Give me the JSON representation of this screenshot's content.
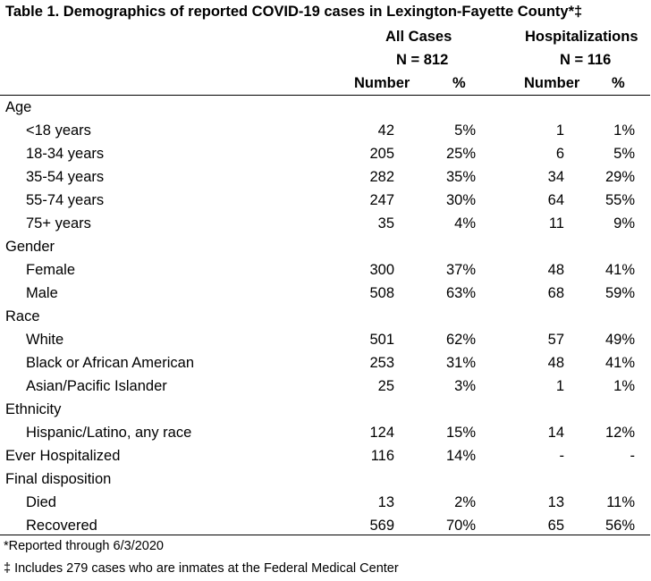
{
  "title": "Table 1. Demographics of reported COVID-19 cases in Lexington-Fayette County*‡",
  "headers": {
    "all_cases": "All Cases",
    "all_cases_n": "N = 812",
    "hospitalizations": "Hospitalizations",
    "hospitalizations_n": "N = 116",
    "number": "Number",
    "percent": "%",
    "number2": "Number",
    "percent2": "%"
  },
  "rows": [
    {
      "label": "Age",
      "type": "section"
    },
    {
      "label": "<18 years",
      "type": "child",
      "n1": "42",
      "p1": "5%",
      "n2": "1",
      "p2": "1%"
    },
    {
      "label": "18-34 years",
      "type": "child",
      "n1": "205",
      "p1": "25%",
      "n2": "6",
      "p2": "5%"
    },
    {
      "label": "35-54 years",
      "type": "child",
      "n1": "282",
      "p1": "35%",
      "n2": "34",
      "p2": "29%"
    },
    {
      "label": "55-74 years",
      "type": "child",
      "n1": "247",
      "p1": "30%",
      "n2": "64",
      "p2": "55%"
    },
    {
      "label": "75+ years",
      "type": "child",
      "n1": "35",
      "p1": "4%",
      "n2": "11",
      "p2": "9%"
    },
    {
      "label": "Gender",
      "type": "section"
    },
    {
      "label": "Female",
      "type": "child",
      "n1": "300",
      "p1": "37%",
      "n2": "48",
      "p2": "41%"
    },
    {
      "label": "Male",
      "type": "child",
      "n1": "508",
      "p1": "63%",
      "n2": "68",
      "p2": "59%"
    },
    {
      "label": "Race",
      "type": "section"
    },
    {
      "label": "White",
      "type": "child",
      "n1": "501",
      "p1": "62%",
      "n2": "57",
      "p2": "49%"
    },
    {
      "label": "Black or African American",
      "type": "child",
      "n1": "253",
      "p1": "31%",
      "n2": "48",
      "p2": "41%"
    },
    {
      "label": "Asian/Pacific Islander",
      "type": "child",
      "n1": "25",
      "p1": "3%",
      "n2": "1",
      "p2": "1%"
    },
    {
      "label": "Ethnicity",
      "type": "section"
    },
    {
      "label": "Hispanic/Latino, any race",
      "type": "child",
      "n1": "124",
      "p1": "15%",
      "n2": "14",
      "p2": "12%"
    },
    {
      "label": "Ever Hospitalized",
      "type": "section",
      "n1": "116",
      "p1": "14%",
      "n2": "-",
      "p2": "-"
    },
    {
      "label": "Final disposition",
      "type": "section"
    },
    {
      "label": "Died",
      "type": "child",
      "n1": "13",
      "p1": "2%",
      "n2": "13",
      "p2": "11%"
    },
    {
      "label": "Recovered",
      "type": "child",
      "n1": "569",
      "p1": "70%",
      "n2": "65",
      "p2": "56%"
    }
  ],
  "footnotes": [
    "*Reported through 6/3/2020",
    "‡ Includes 279 cases who are inmates at the Federal Medical Center"
  ]
}
